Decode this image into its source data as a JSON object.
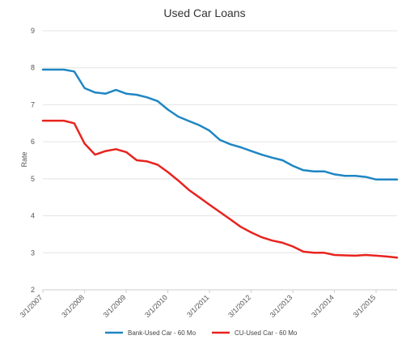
{
  "chart_data": {
    "type": "line",
    "title": "Used Car Loans",
    "xlabel": "",
    "ylabel": "Rate",
    "ylim": [
      2,
      9
    ],
    "yticks": [
      "2",
      "3",
      "4",
      "5",
      "6",
      "7",
      "8",
      "9"
    ],
    "xticks": [
      "3/1/2007",
      "3/1/2008",
      "3/1/2009",
      "3/1/2010",
      "3/1/2011",
      "3/1/2012",
      "3/1/2013",
      "3/1/2014",
      "3/1/2015"
    ],
    "xlim": [
      "2007-03-01",
      "2015-09-01"
    ],
    "grid": true,
    "legend_position": "bottom",
    "x": [
      "2007-03-01",
      "2007-06-01",
      "2007-09-01",
      "2007-12-01",
      "2008-03-01",
      "2008-06-01",
      "2008-09-01",
      "2008-12-01",
      "2009-03-01",
      "2009-06-01",
      "2009-09-01",
      "2009-12-01",
      "2010-03-01",
      "2010-06-01",
      "2010-09-01",
      "2010-12-01",
      "2011-03-01",
      "2011-06-01",
      "2011-09-01",
      "2011-12-01",
      "2012-03-01",
      "2012-06-01",
      "2012-09-01",
      "2012-12-01",
      "2013-03-01",
      "2013-06-01",
      "2013-09-01",
      "2013-12-01",
      "2014-03-01",
      "2014-06-01",
      "2014-09-01",
      "2014-12-01",
      "2015-03-01",
      "2015-06-01",
      "2015-09-01"
    ],
    "series": [
      {
        "name": "Bank-Used Car - 60 Mo",
        "color": "#1f86c3",
        "values": [
          7.95,
          7.95,
          7.95,
          7.9,
          7.45,
          7.33,
          7.3,
          7.4,
          7.3,
          7.27,
          7.2,
          7.1,
          6.87,
          6.68,
          6.56,
          6.45,
          6.3,
          6.05,
          5.93,
          5.85,
          5.75,
          5.65,
          5.57,
          5.5,
          5.35,
          5.23,
          5.2,
          5.2,
          5.12,
          5.08,
          5.08,
          5.05,
          4.98,
          4.98,
          4.98
        ]
      },
      {
        "name": "CU-Used Car - 60 Mo",
        "color": "#e8231e",
        "values": [
          6.57,
          6.57,
          6.57,
          6.5,
          5.95,
          5.65,
          5.75,
          5.8,
          5.72,
          5.5,
          5.47,
          5.38,
          5.18,
          4.95,
          4.7,
          4.5,
          4.3,
          4.1,
          3.9,
          3.7,
          3.55,
          3.42,
          3.33,
          3.27,
          3.17,
          3.03,
          3.0,
          3.0,
          2.94,
          2.93,
          2.92,
          2.94,
          2.92,
          2.9,
          2.87
        ]
      }
    ]
  }
}
